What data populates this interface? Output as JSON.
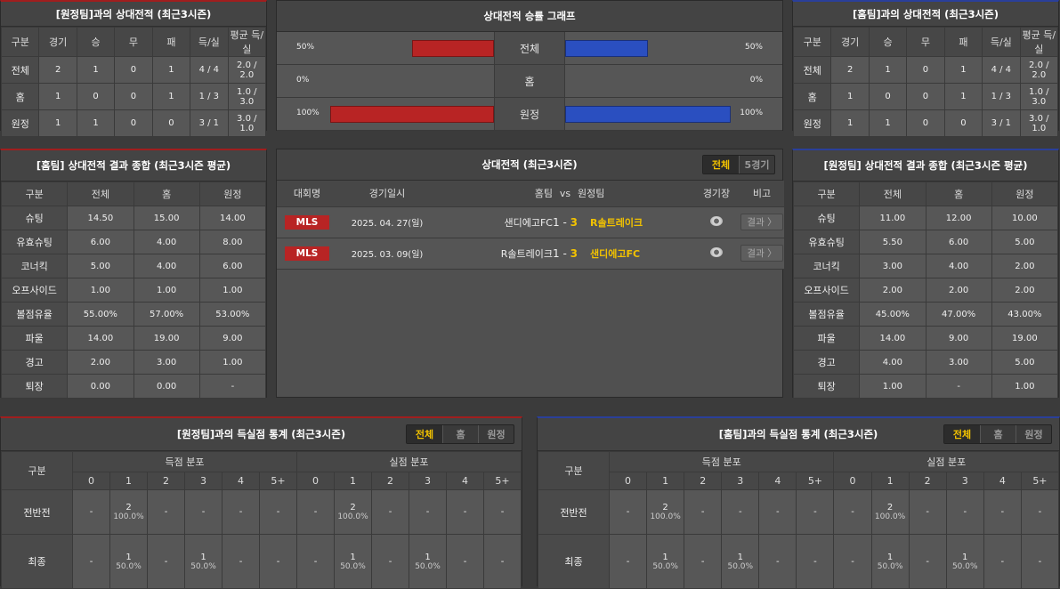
{
  "h2h_away": {
    "title": "[원정팀]과의 상대전적 (최근3시즌)",
    "headers": [
      "구분",
      "경기",
      "승",
      "무",
      "패",
      "득/실",
      "평균 득/실"
    ],
    "rows": [
      [
        "전체",
        "2",
        "1",
        "0",
        "1",
        "4 / 4",
        "2.0 / 2.0"
      ],
      [
        "홈",
        "1",
        "0",
        "0",
        "1",
        "1 / 3",
        "1.0 / 3.0"
      ],
      [
        "원정",
        "1",
        "1",
        "0",
        "0",
        "3 / 1",
        "3.0 / 1.0"
      ]
    ]
  },
  "h2h_home": {
    "title": "[홈팀]과의 상대전적 (최근3시즌)",
    "headers": [
      "구분",
      "경기",
      "승",
      "무",
      "패",
      "득/실",
      "평균 득/실"
    ],
    "rows": [
      [
        "전체",
        "2",
        "1",
        "0",
        "1",
        "4 / 4",
        "2.0 / 2.0"
      ],
      [
        "홈",
        "1",
        "0",
        "0",
        "1",
        "1 / 3",
        "1.0 / 3.0"
      ],
      [
        "원정",
        "1",
        "1",
        "0",
        "0",
        "3 / 1",
        "3.0 / 1.0"
      ]
    ]
  },
  "graph": {
    "title": "상대전적 승률 그래프",
    "colors": {
      "left": "#b82424",
      "right": "#2a4fc0"
    },
    "rows": [
      {
        "label": "전체",
        "left": 50,
        "right": 50,
        "left_text": "50%",
        "right_text": "50%"
      },
      {
        "label": "홈",
        "left": 0,
        "right": 0,
        "left_text": "0%",
        "right_text": "0%"
      },
      {
        "label": "원정",
        "left": 100,
        "right": 100,
        "left_text": "100%",
        "right_text": "100%"
      }
    ]
  },
  "home_summary": {
    "title": "[홈팀] 상대전적 결과 종합 (최근3시즌 평균)",
    "headers": [
      "구분",
      "전체",
      "홈",
      "원정"
    ],
    "rows": [
      [
        "슈팅",
        "14.50",
        "15.00",
        "14.00"
      ],
      [
        "유효슈팅",
        "6.00",
        "4.00",
        "8.00"
      ],
      [
        "코너킥",
        "5.00",
        "4.00",
        "6.00"
      ],
      [
        "오프사이드",
        "1.00",
        "1.00",
        "1.00"
      ],
      [
        "볼점유율",
        "55.00%",
        "57.00%",
        "53.00%"
      ],
      [
        "파울",
        "14.00",
        "19.00",
        "9.00"
      ],
      [
        "경고",
        "2.00",
        "3.00",
        "1.00"
      ],
      [
        "퇴장",
        "0.00",
        "0.00",
        "-"
      ]
    ]
  },
  "away_summary": {
    "title": "[원정팀] 상대전적 결과 종합 (최근3시즌 평균)",
    "headers": [
      "구분",
      "전체",
      "홈",
      "원정"
    ],
    "rows": [
      [
        "슈팅",
        "11.00",
        "12.00",
        "10.00"
      ],
      [
        "유효슈팅",
        "5.50",
        "6.00",
        "5.00"
      ],
      [
        "코너킥",
        "3.00",
        "4.00",
        "2.00"
      ],
      [
        "오프사이드",
        "2.00",
        "2.00",
        "2.00"
      ],
      [
        "볼점유율",
        "45.00%",
        "47.00%",
        "43.00%"
      ],
      [
        "파울",
        "14.00",
        "9.00",
        "19.00"
      ],
      [
        "경고",
        "4.00",
        "3.00",
        "5.00"
      ],
      [
        "퇴장",
        "1.00",
        "-",
        "1.00"
      ]
    ]
  },
  "matches": {
    "title": "상대전적 (최근3시즌)",
    "tabs": [
      {
        "label": "전체",
        "active": true
      },
      {
        "label": "5경기",
        "active": false
      }
    ],
    "headers": [
      "대회명",
      "경기일시",
      "홈팀",
      "vs",
      "원정팀",
      "경기장",
      "비고"
    ],
    "rows": [
      {
        "league": "MLS",
        "date": "2025. 04. 27(일)",
        "home": "샌디에고FC",
        "hs": "1",
        "sep": "-",
        "as": "3",
        "away": "R솔트레이크",
        "winner": "away",
        "result": "결과 〉"
      },
      {
        "league": "MLS",
        "date": "2025. 03. 09(일)",
        "home": "R솔트레이크",
        "hs": "1",
        "sep": "-",
        "as": "3",
        "away": "샌디에고FC",
        "winner": "away",
        "result": "결과 〉"
      }
    ]
  },
  "goals_away": {
    "title": "[원정팀]과의 득실점 통계 (최근3시즌)",
    "tabs": [
      {
        "label": "전체",
        "active": true
      },
      {
        "label": "홈",
        "active": false
      },
      {
        "label": "원정",
        "active": false
      }
    ],
    "col0": "구분",
    "group1": "득점 분포",
    "group2": "실점 분포",
    "buckets": [
      "0",
      "1",
      "2",
      "3",
      "4",
      "5+"
    ],
    "rows": [
      {
        "label": "전반전",
        "cells": [
          [
            "-"
          ],
          [
            "2",
            "100.0%"
          ],
          [
            "-"
          ],
          [
            "-"
          ],
          [
            "-"
          ],
          [
            "-"
          ],
          [
            "-"
          ],
          [
            "2",
            "100.0%"
          ],
          [
            "-"
          ],
          [
            "-"
          ],
          [
            "-"
          ],
          [
            "-"
          ]
        ]
      },
      {
        "label": "최종",
        "cells": [
          [
            "-"
          ],
          [
            "1",
            "50.0%"
          ],
          [
            "-"
          ],
          [
            "1",
            "50.0%"
          ],
          [
            "-"
          ],
          [
            "-"
          ],
          [
            "-"
          ],
          [
            "1",
            "50.0%"
          ],
          [
            "-"
          ],
          [
            "1",
            "50.0%"
          ],
          [
            "-"
          ],
          [
            "-"
          ]
        ]
      }
    ]
  },
  "goals_home": {
    "title": "[홈팀]과의 득실점 통계 (최근3시즌)",
    "tabs": [
      {
        "label": "전체",
        "active": true
      },
      {
        "label": "홈",
        "active": false
      },
      {
        "label": "원정",
        "active": false
      }
    ],
    "col0": "구분",
    "group1": "득점 분포",
    "group2": "실점 분포",
    "buckets": [
      "0",
      "1",
      "2",
      "3",
      "4",
      "5+"
    ],
    "rows": [
      {
        "label": "전반전",
        "cells": [
          [
            "-"
          ],
          [
            "2",
            "100.0%"
          ],
          [
            "-"
          ],
          [
            "-"
          ],
          [
            "-"
          ],
          [
            "-"
          ],
          [
            "-"
          ],
          [
            "2",
            "100.0%"
          ],
          [
            "-"
          ],
          [
            "-"
          ],
          [
            "-"
          ],
          [
            "-"
          ]
        ]
      },
      {
        "label": "최종",
        "cells": [
          [
            "-"
          ],
          [
            "1",
            "50.0%"
          ],
          [
            "-"
          ],
          [
            "1",
            "50.0%"
          ],
          [
            "-"
          ],
          [
            "-"
          ],
          [
            "-"
          ],
          [
            "1",
            "50.0%"
          ],
          [
            "-"
          ],
          [
            "1",
            "50.0%"
          ],
          [
            "-"
          ],
          [
            "-"
          ]
        ]
      }
    ]
  }
}
